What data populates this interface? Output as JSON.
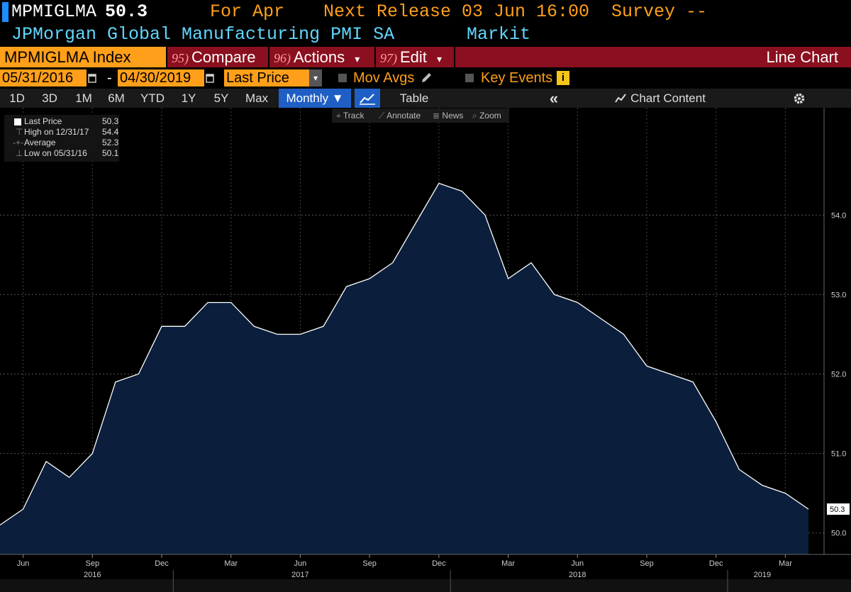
{
  "header": {
    "ticker": "MPMIGLMA",
    "last_value": "50.3",
    "for_label": "For Apr",
    "next_release": "Next Release 03 Jun 16:00",
    "survey": "Survey --",
    "description": "JPMorgan Global Manufacturing PMI SA",
    "source": "Markit"
  },
  "command_bar": {
    "security": "MPMIGLMA Index",
    "compare_num": "95)",
    "compare": "Compare",
    "actions_num": "96)",
    "actions": "Actions",
    "edit_num": "97)",
    "edit": "Edit",
    "view": "Line Chart",
    "dropdown_glyph": "▾"
  },
  "date_row": {
    "start_date": "05/31/2016",
    "dash": "-",
    "end_date": "04/30/2019",
    "field": "Last Price",
    "mov_avgs": "Mov Avgs",
    "key_events": "Key Events",
    "info": "i"
  },
  "range_row": {
    "buttons": [
      "1D",
      "3D",
      "1M",
      "6M",
      "YTD",
      "1Y",
      "5Y",
      "Max"
    ],
    "period": "Monthly ▼",
    "table": "Table",
    "collapse": "«",
    "chart_content": "Chart Content"
  },
  "chart_tools": {
    "track": "Track",
    "annotate": "Annotate",
    "news": "News",
    "zoom": "Zoom"
  },
  "legend": {
    "last_label": "Last Price",
    "last_value": "50.3",
    "high_label": "High on 12/31/17",
    "high_value": "54.4",
    "avg_label": "Average",
    "avg_value": "52.3",
    "low_label": "Low on 05/31/16",
    "low_value": "50.1"
  },
  "colors": {
    "accent_orange": "#ff9f1a",
    "cmd_red": "#8a0f1f",
    "area_fill": "#0b1f3c",
    "line": "#ffffff",
    "cyan": "#5fd7ff"
  },
  "chart_data": {
    "type": "area",
    "title": "JPMorgan Global Manufacturing PMI SA",
    "series": [
      {
        "name": "Last Price",
        "dates": [
          "2016-05",
          "2016-06",
          "2016-07",
          "2016-08",
          "2016-09",
          "2016-10",
          "2016-11",
          "2016-12",
          "2017-01",
          "2017-02",
          "2017-03",
          "2017-04",
          "2017-05",
          "2017-06",
          "2017-07",
          "2017-08",
          "2017-09",
          "2017-10",
          "2017-11",
          "2017-12",
          "2018-01",
          "2018-02",
          "2018-03",
          "2018-04",
          "2018-05",
          "2018-06",
          "2018-07",
          "2018-08",
          "2018-09",
          "2018-10",
          "2018-11",
          "2018-12",
          "2019-01",
          "2019-02",
          "2019-03",
          "2019-04"
        ],
        "values": [
          50.1,
          50.3,
          50.9,
          50.7,
          51.0,
          51.9,
          52.0,
          52.6,
          52.6,
          52.9,
          52.9,
          52.6,
          52.5,
          52.5,
          52.6,
          53.1,
          53.2,
          53.4,
          53.9,
          54.4,
          54.3,
          54.0,
          53.2,
          53.4,
          53.0,
          52.9,
          52.7,
          52.5,
          52.1,
          52.0,
          51.9,
          51.4,
          50.8,
          50.6,
          50.5,
          50.3
        ]
      }
    ],
    "ylim": [
      49.73,
      55.35
    ],
    "yticks": [
      "50.0",
      "51.0",
      "52.0",
      "53.0",
      "54.0"
    ],
    "ytick_values": [
      50.0,
      51.0,
      52.0,
      53.0,
      54.0
    ],
    "month_ticks": [
      {
        "label": "Jun",
        "date": "2016-06"
      },
      {
        "label": "Sep",
        "date": "2016-09"
      },
      {
        "label": "Dec",
        "date": "2016-12"
      },
      {
        "label": "Mar",
        "date": "2017-03"
      },
      {
        "label": "Jun",
        "date": "2017-06"
      },
      {
        "label": "Sep",
        "date": "2017-09"
      },
      {
        "label": "Dec",
        "date": "2017-12"
      },
      {
        "label": "Mar",
        "date": "2018-03"
      },
      {
        "label": "Jun",
        "date": "2018-06"
      },
      {
        "label": "Sep",
        "date": "2018-09"
      },
      {
        "label": "Dec",
        "date": "2018-12"
      },
      {
        "label": "Mar",
        "date": "2019-03"
      }
    ],
    "year_ticks": [
      {
        "label": "2016",
        "date": "2016-09"
      },
      {
        "label": "2017",
        "date": "2017-06"
      },
      {
        "label": "2018",
        "date": "2018-06"
      },
      {
        "label": "2019",
        "date": "2019-02"
      }
    ],
    "last_value_label": "50.3",
    "grid": true,
    "legend_position": "top-left"
  }
}
